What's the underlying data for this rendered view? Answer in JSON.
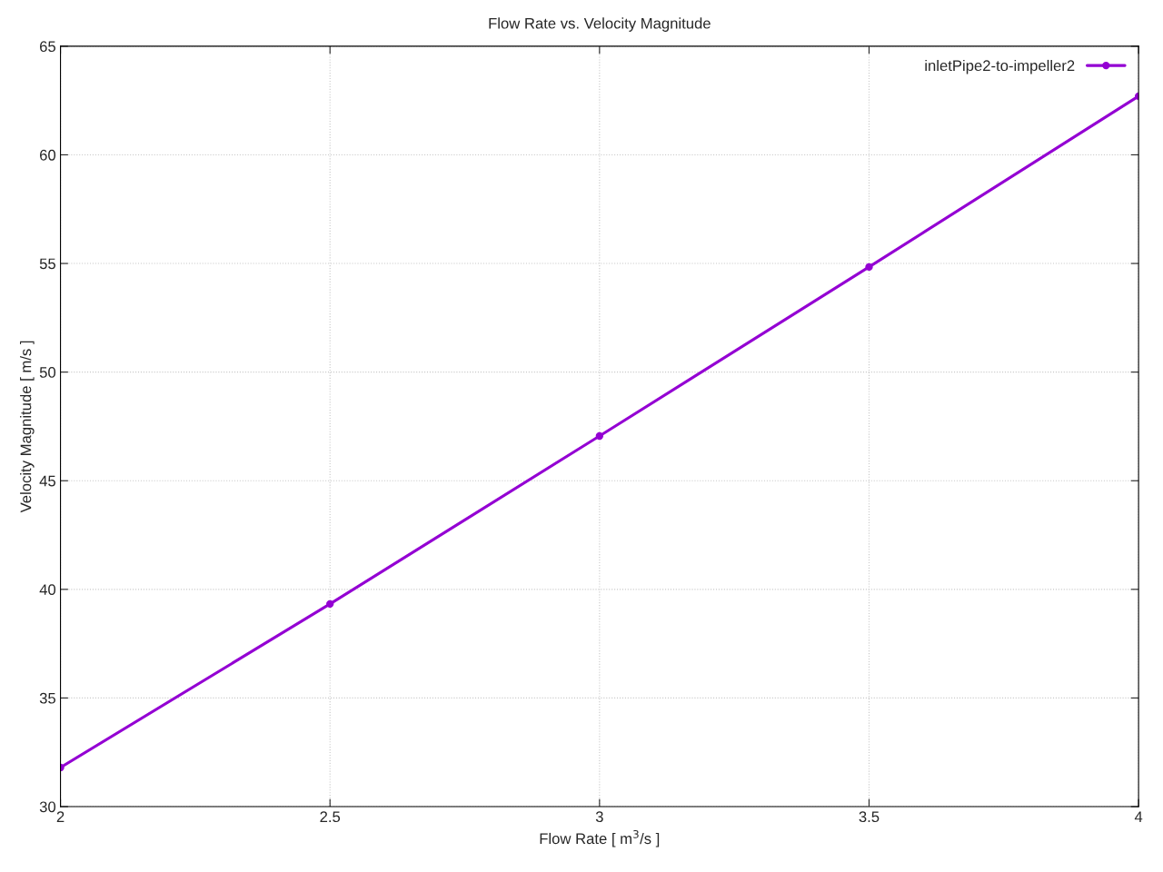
{
  "chart_data": {
    "type": "line",
    "title": "Flow Rate vs. Velocity Magnitude",
    "xlabel": "Flow Rate [ m$^{3}$/s ]",
    "ylabel": "Velocity Magnitude [ m/s ]",
    "x": [
      2,
      2.5,
      3,
      3.5,
      4
    ],
    "series": [
      {
        "name": "inletPipe2-to-impeller2",
        "color": "#9400d3",
        "values": [
          31.8,
          39.33,
          47.06,
          54.84,
          62.7
        ]
      }
    ],
    "xlim": [
      2,
      4
    ],
    "xticks": [
      2,
      2.5,
      3,
      3.5,
      4
    ],
    "ylim": [
      30,
      65
    ],
    "yticks": [
      30,
      35,
      40,
      45,
      50,
      55,
      60,
      65
    ],
    "grid": true,
    "legend": "top right",
    "marker": "circle",
    "line_style": "solid"
  }
}
